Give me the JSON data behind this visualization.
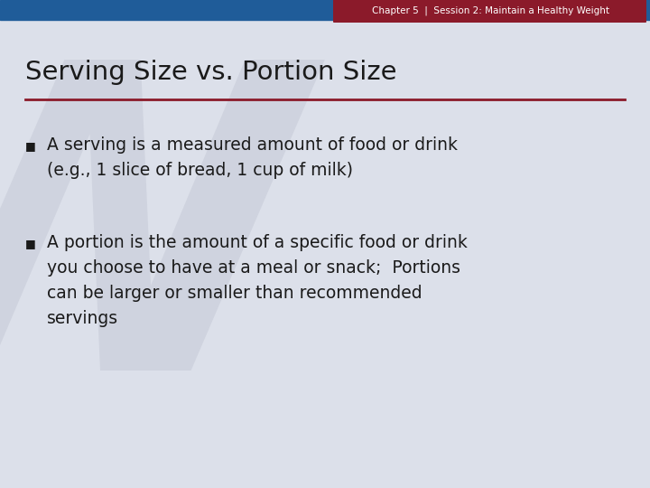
{
  "header_text": "Chapter 5  |  Session 2: Maintain a Healthy Weight",
  "title": "Serving Size vs. Portion Size",
  "bullet1_line1": "A serving is a measured amount of food or drink",
  "bullet1_line2": "(e.g., 1 slice of bread, 1 cup of milk)",
  "bullet2_line1": "A portion is the amount of a specific food or drink",
  "bullet2_line2": "you choose to have at a meal or snack;  Portions",
  "bullet2_line3": "can be larger or smaller than recommended",
  "bullet2_line4": "servings",
  "bg_color": "#dce0ea",
  "header_bg_color": "#8B1A2A",
  "header_text_color": "#ffffff",
  "top_bar_color": "#1F5C99",
  "title_color": "#1a1a1a",
  "separator_color": "#8B1A2A",
  "bullet_text_color": "#1a1a1a",
  "watermark_color": "#c5c9d6"
}
